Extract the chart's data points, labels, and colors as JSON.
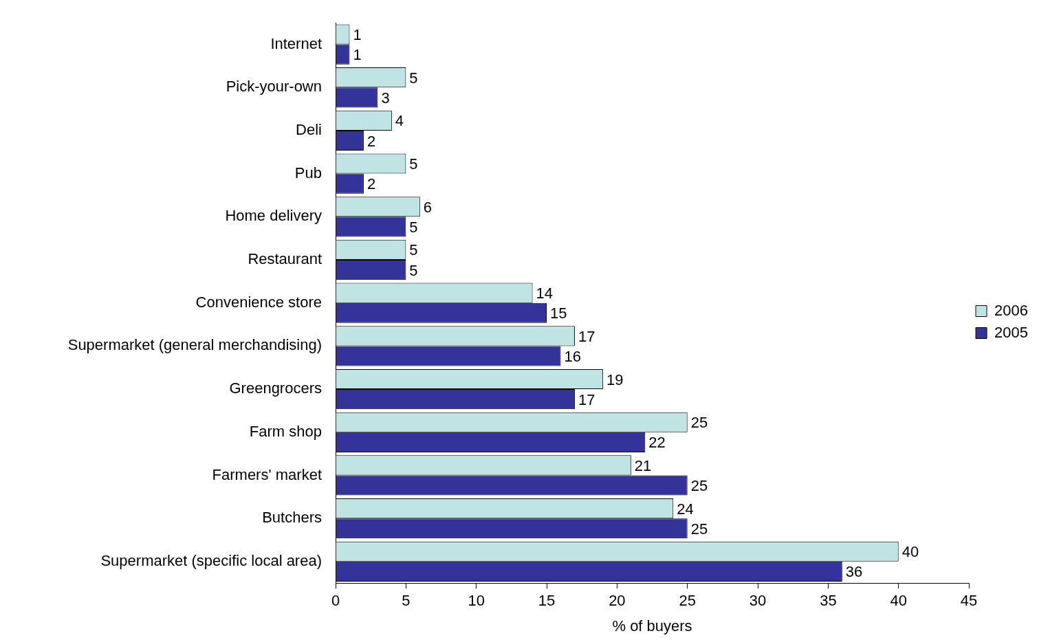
{
  "chart_data": {
    "type": "bar",
    "orientation": "horizontal",
    "xlabel": "% of buyers",
    "categories": [
      "Internet",
      "Pick-your-own",
      "Deli",
      "Pub",
      "Home delivery",
      "Restaurant",
      "Convenience store",
      "Supermarket (general merchandising)",
      "Greengrocers",
      "Farm shop",
      "Farmers' market",
      "Butchers",
      "Supermarket (specific local area)"
    ],
    "series": [
      {
        "name": "2006",
        "color": "#c0e4e4",
        "values": [
          1,
          5,
          4,
          5,
          6,
          5,
          14,
          17,
          19,
          25,
          21,
          24,
          40
        ]
      },
      {
        "name": "2005",
        "color": "#333399",
        "values": [
          1,
          3,
          2,
          2,
          5,
          5,
          15,
          16,
          17,
          22,
          25,
          25,
          36
        ]
      }
    ],
    "xlim": [
      0,
      45
    ],
    "xticks": [
      0,
      5,
      10,
      15,
      20,
      25,
      30,
      35,
      40,
      45
    ],
    "grid": false,
    "legend": "right",
    "data_labels": true
  }
}
